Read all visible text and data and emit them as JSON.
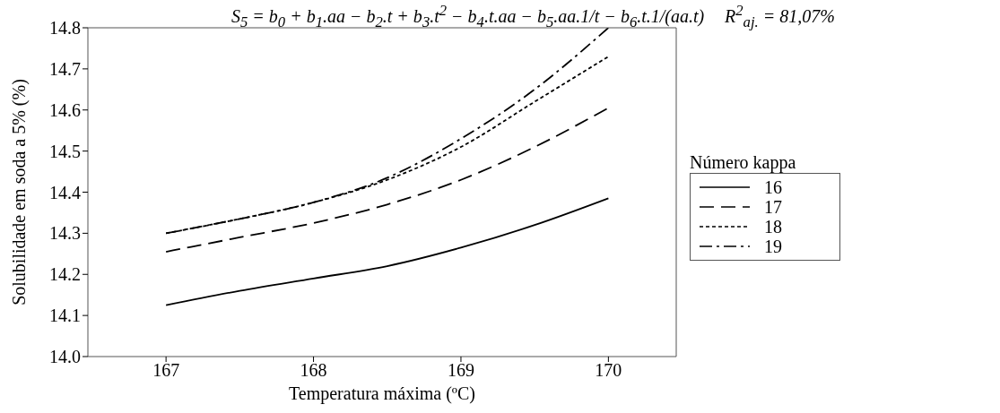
{
  "chart_data": {
    "type": "line",
    "title": "S$_{5}$ = b$_{0}$ + b$_{1}$.aa − b$_{2}$.t + b$_{3}$.t$^{2}$ − b$_{4}$.t.aa − b$_{5}$.aa.1/t − b$_{6}$.t.1/(aa.t)",
    "subtitle": "R$^{2}$$_{aj.}$ = 81,07%",
    "xlabel": "Temperatura máxima (ºC)",
    "ylabel": "Solubilidade em soda a 5% (%)",
    "legend_title": "Número kappa",
    "x": [
      167,
      167.5,
      168,
      168.5,
      169,
      169.5,
      170
    ],
    "series": [
      {
        "name": "16",
        "color": "#000000",
        "line_style": "solid",
        "values": [
          14.125,
          14.16,
          14.19,
          14.22,
          14.265,
          14.32,
          14.385
        ]
      },
      {
        "name": "17",
        "color": "#000000",
        "line_style": "dashed",
        "values": [
          14.255,
          14.29,
          14.325,
          14.37,
          14.43,
          14.51,
          14.605
        ]
      },
      {
        "name": "18",
        "color": "#000000",
        "line_style": "dotted",
        "values": [
          14.3,
          14.335,
          14.375,
          14.43,
          14.51,
          14.62,
          14.73
        ]
      },
      {
        "name": "19",
        "color": "#000000",
        "line_style": "dashdot",
        "values": [
          14.3,
          14.335,
          14.375,
          14.435,
          14.53,
          14.65,
          14.8
        ]
      }
    ],
    "xlim": [
      166.47,
      170.46
    ],
    "xticks": [
      167,
      168,
      169,
      170
    ],
    "ylim": [
      14,
      14.8
    ],
    "yticks": [
      {
        "value": 14,
        "label": "14.0"
      },
      14.1,
      14.2,
      14.3,
      14.4,
      14.5,
      14.6,
      14.7,
      14.8
    ],
    "legend": "right",
    "marker": "none"
  }
}
